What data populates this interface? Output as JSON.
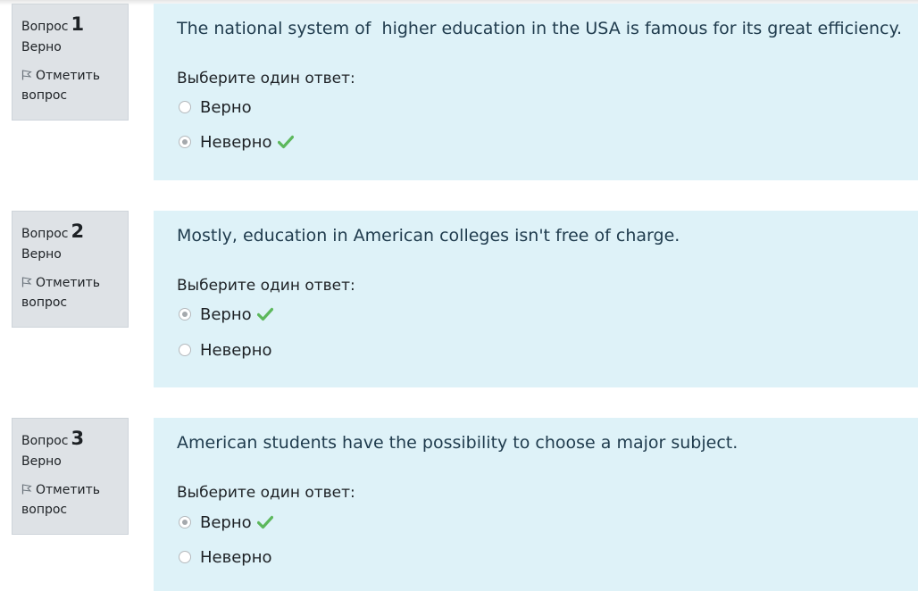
{
  "colors": {
    "info_bg": "#dee2e6",
    "content_bg": "#def2f8",
    "correct_check": "#5cb85c"
  },
  "questions": [
    {
      "label": "Вопрос",
      "number": "1",
      "state": "Верно",
      "flag_label": "Отметить",
      "flag_label2": "вопрос",
      "text": "The national system of  higher education in the USA is famous for its great efficiency.",
      "prompt": "Выберите один ответ:",
      "answers": [
        {
          "label": "Верно",
          "selected": false,
          "icon": ""
        },
        {
          "label": "Неверно",
          "selected": true,
          "icon": "check-icon"
        }
      ]
    },
    {
      "label": "Вопрос",
      "number": "2",
      "state": "Верно",
      "flag_label": "Отметить",
      "flag_label2": "вопрос",
      "text": "Mostly, education in American colleges isn't free of charge.",
      "prompt": "Выберите один ответ:",
      "answers": [
        {
          "label": "Верно",
          "selected": true,
          "icon": "check-icon"
        },
        {
          "label": "Неверно",
          "selected": false,
          "icon": ""
        }
      ]
    },
    {
      "label": "Вопрос",
      "number": "3",
      "state": "Верно",
      "flag_label": "Отметить",
      "flag_label2": "вопрос",
      "text": "American students have the possibility to choose a major subject.",
      "prompt": "Выберите один ответ:",
      "answers": [
        {
          "label": "Верно",
          "selected": true,
          "icon": "check-icon"
        },
        {
          "label": "Неверно",
          "selected": false,
          "icon": ""
        }
      ]
    }
  ]
}
